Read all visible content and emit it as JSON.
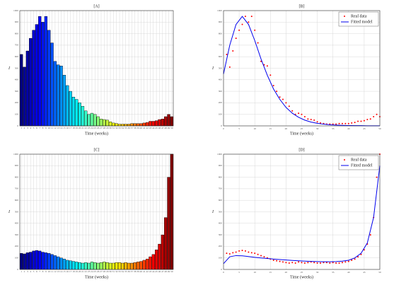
{
  "chart_data": [
    {
      "type": "bar",
      "title": "[A]",
      "xlabel": "Time (weeks)",
      "ylabel": "I",
      "colormap": "jet",
      "grid": true,
      "categories": [
        1,
        2,
        3,
        4,
        5,
        6,
        7,
        8,
        9,
        10,
        11,
        12,
        13,
        14,
        15,
        16,
        17,
        18,
        19,
        20,
        21,
        22,
        23,
        24,
        25,
        26,
        27,
        28,
        29,
        30,
        31,
        32,
        33,
        34,
        35,
        36,
        37,
        38,
        39,
        40,
        41,
        42,
        43,
        44,
        45,
        46,
        47,
        48,
        49,
        50
      ],
      "values": [
        620,
        510,
        650,
        760,
        830,
        880,
        950,
        900,
        950,
        830,
        720,
        560,
        530,
        520,
        440,
        350,
        300,
        250,
        230,
        200,
        170,
        130,
        100,
        110,
        100,
        80,
        60,
        55,
        50,
        35,
        25,
        20,
        15,
        15,
        15,
        15,
        20,
        20,
        20,
        20,
        25,
        30,
        40,
        40,
        45,
        55,
        60,
        80,
        100,
        80
      ],
      "ylim": [
        0,
        1000
      ],
      "yticks": [
        0,
        100,
        200,
        300,
        400,
        500,
        600,
        700,
        800,
        900,
        1000
      ]
    },
    {
      "type": "line",
      "title": "[B]",
      "xlabel": "Time (weeks)",
      "ylabel": "I",
      "grid": true,
      "legend": "top-right",
      "xlim": [
        0,
        50
      ],
      "xticks": [
        0,
        5,
        10,
        15,
        20,
        25,
        30,
        35,
        40,
        45,
        50
      ],
      "ylim": [
        0,
        1000
      ],
      "yticks": [
        0,
        100,
        200,
        300,
        400,
        500,
        600,
        700,
        800,
        900,
        1000
      ],
      "series": [
        {
          "name": "Real data",
          "color": "#ff0000",
          "mode": "markers",
          "x": [
            1,
            2,
            3,
            4,
            5,
            6,
            7,
            8,
            9,
            10,
            11,
            12,
            13,
            14,
            15,
            16,
            17,
            18,
            19,
            20,
            21,
            22,
            23,
            24,
            25,
            26,
            27,
            28,
            29,
            30,
            31,
            32,
            33,
            34,
            35,
            36,
            37,
            38,
            39,
            40,
            41,
            42,
            43,
            44,
            45,
            46,
            47,
            48,
            49,
            50
          ],
          "values": [
            620,
            510,
            650,
            760,
            830,
            880,
            950,
            900,
            950,
            830,
            720,
            560,
            530,
            520,
            440,
            350,
            300,
            250,
            230,
            200,
            170,
            130,
            100,
            110,
            100,
            80,
            60,
            55,
            50,
            35,
            25,
            20,
            15,
            15,
            15,
            15,
            20,
            20,
            20,
            20,
            25,
            30,
            40,
            40,
            45,
            55,
            60,
            80,
            100,
            80
          ]
        },
        {
          "name": "Fitted model",
          "color": "#0000ee",
          "mode": "line",
          "x": [
            0,
            2,
            4,
            6,
            8,
            10,
            12,
            14,
            16,
            18,
            20,
            22,
            24,
            26,
            28,
            30,
            32,
            34,
            36,
            38,
            40,
            42,
            44,
            46,
            48,
            50
          ],
          "values": [
            450,
            700,
            880,
            950,
            880,
            740,
            580,
            440,
            320,
            230,
            160,
            110,
            75,
            50,
            33,
            22,
            15,
            10,
            7,
            5,
            3,
            2,
            2,
            1,
            1,
            1
          ]
        }
      ]
    },
    {
      "type": "bar",
      "title": "[C]",
      "xlabel": "Time (weeks)",
      "ylabel": "I",
      "colormap": "jet",
      "grid": true,
      "categories": [
        1,
        2,
        3,
        4,
        5,
        6,
        7,
        8,
        9,
        10,
        11,
        12,
        13,
        14,
        15,
        16,
        17,
        18,
        19,
        20,
        21,
        22,
        23,
        24,
        25,
        26,
        27,
        28,
        29,
        30,
        31,
        32,
        33,
        34,
        35,
        36,
        37,
        38,
        39,
        40,
        41,
        42,
        43,
        44,
        45,
        46,
        47,
        48,
        49,
        50
      ],
      "values": [
        140,
        135,
        145,
        150,
        160,
        165,
        160,
        150,
        145,
        140,
        130,
        120,
        110,
        100,
        90,
        80,
        75,
        70,
        65,
        60,
        55,
        60,
        55,
        65,
        60,
        55,
        60,
        65,
        60,
        55,
        55,
        60,
        60,
        55,
        60,
        55,
        55,
        60,
        65,
        70,
        80,
        90,
        110,
        130,
        170,
        220,
        300,
        450,
        800,
        1000
      ],
      "ylim": [
        0,
        1000
      ],
      "yticks": [
        0,
        100,
        200,
        300,
        400,
        500,
        600,
        700,
        800,
        900,
        1000
      ]
    },
    {
      "type": "line",
      "title": "[D]",
      "xlabel": "Time (weeks)",
      "ylabel": "I",
      "grid": true,
      "legend": "top-right",
      "xlim": [
        0,
        50
      ],
      "xticks": [
        0,
        5,
        10,
        15,
        20,
        25,
        30,
        35,
        40,
        45,
        50
      ],
      "ylim": [
        0,
        1000
      ],
      "yticks": [
        0,
        100,
        200,
        300,
        400,
        500,
        600,
        700,
        800,
        900,
        1000
      ],
      "series": [
        {
          "name": "Real data",
          "color": "#ff0000",
          "mode": "markers",
          "x": [
            1,
            2,
            3,
            4,
            5,
            6,
            7,
            8,
            9,
            10,
            11,
            12,
            13,
            14,
            15,
            16,
            17,
            18,
            19,
            20,
            21,
            22,
            23,
            24,
            25,
            26,
            27,
            28,
            29,
            30,
            31,
            32,
            33,
            34,
            35,
            36,
            37,
            38,
            39,
            40,
            41,
            42,
            43,
            44,
            45,
            46,
            47,
            48,
            49,
            50
          ],
          "values": [
            140,
            135,
            145,
            150,
            160,
            165,
            160,
            150,
            145,
            140,
            130,
            120,
            110,
            100,
            90,
            80,
            75,
            70,
            65,
            60,
            55,
            60,
            55,
            65,
            60,
            55,
            60,
            65,
            60,
            55,
            55,
            60,
            60,
            55,
            60,
            55,
            55,
            60,
            65,
            70,
            80,
            90,
            110,
            130,
            170,
            220,
            300,
            450,
            800,
            1000
          ]
        },
        {
          "name": "Fitted model",
          "color": "#0000ee",
          "mode": "line",
          "x": [
            0,
            2,
            4,
            6,
            8,
            10,
            12,
            14,
            16,
            18,
            20,
            22,
            24,
            26,
            28,
            30,
            32,
            34,
            36,
            38,
            40,
            42,
            44,
            46,
            48,
            50
          ],
          "values": [
            50,
            110,
            120,
            118,
            112,
            105,
            100,
            95,
            90,
            86,
            82,
            78,
            75,
            72,
            70,
            68,
            67,
            67,
            68,
            72,
            80,
            100,
            140,
            230,
            450,
            900
          ]
        }
      ]
    }
  ]
}
